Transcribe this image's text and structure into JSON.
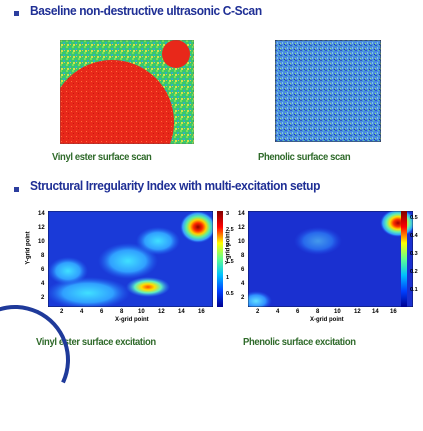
{
  "section1": {
    "heading": "Baseline non-destructive ultrasonic C-Scan",
    "captions": [
      "Vinyl ester surface scan",
      "Phenolic surface scan"
    ]
  },
  "section2": {
    "heading": "Structural Irregularity Index with multi-excitation setup",
    "captions": [
      "Vinyl ester surface excitation",
      "Phenolic surface excitation"
    ]
  },
  "plot_left": {
    "ylabel": "Y-grid point",
    "xlabel": "X-grid point",
    "xticks": [
      "2",
      "4",
      "6",
      "8",
      "10",
      "12",
      "14",
      "16"
    ],
    "yticks": [
      "14",
      "12",
      "10",
      "8",
      "6",
      "4",
      "2"
    ],
    "cbticks": [
      "3",
      "2.5",
      "2",
      "1.5",
      "1",
      "0.5"
    ]
  },
  "plot_right": {
    "ylabel": "Y-grid point",
    "xlabel": "X-grid point",
    "xticks": [
      "2",
      "4",
      "6",
      "8",
      "10",
      "12",
      "14",
      "16"
    ],
    "yticks": [
      "14",
      "12",
      "10",
      "8",
      "6",
      "4",
      "2"
    ],
    "cbticks": [
      "0.5",
      "0.4",
      "0.3",
      "0.2",
      "0.1"
    ]
  },
  "colors": {
    "heading": "#1f2f95",
    "caption": "#2f6a2a",
    "bullet": "#2c3e9e"
  }
}
